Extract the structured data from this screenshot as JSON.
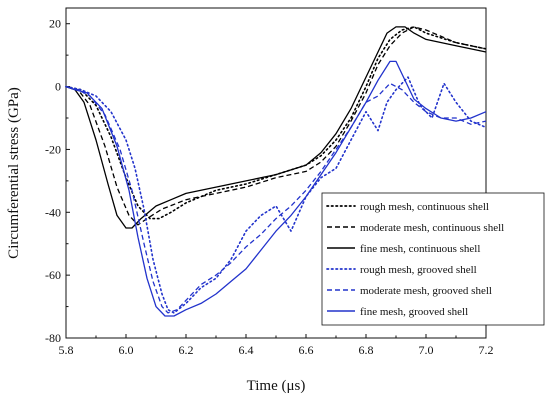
{
  "chart_data": {
    "type": "line",
    "xlabel": "Time (μs)",
    "ylabel": "Circumferential stress (GPa)",
    "xlim": [
      5.8,
      7.2
    ],
    "ylim": [
      -80,
      25
    ],
    "x_ticks": [
      "5.8",
      "6.0",
      "6.2",
      "6.4",
      "6.6",
      "6.8",
      "7.0",
      "7.2"
    ],
    "y_ticks": [
      "20",
      "0",
      "-20",
      "-40",
      "-60",
      "-80"
    ],
    "grid": false,
    "legend_position": "bottom-right",
    "series": [
      {
        "name": "rough mesh, continuous shell",
        "color": "#000000",
        "dash": "dotted",
        "points": [
          [
            5.8,
            0
          ],
          [
            5.85,
            -1
          ],
          [
            5.9,
            -6
          ],
          [
            5.95,
            -16
          ],
          [
            6.0,
            -29
          ],
          [
            6.04,
            -38
          ],
          [
            6.08,
            -42
          ],
          [
            6.11,
            -42
          ],
          [
            6.15,
            -40
          ],
          [
            6.2,
            -37
          ],
          [
            6.3,
            -33
          ],
          [
            6.4,
            -31
          ],
          [
            6.5,
            -28
          ],
          [
            6.6,
            -25
          ],
          [
            6.65,
            -22
          ],
          [
            6.7,
            -17
          ],
          [
            6.75,
            -10
          ],
          [
            6.8,
            0
          ],
          [
            6.84,
            9
          ],
          [
            6.88,
            15
          ],
          [
            6.92,
            18
          ],
          [
            6.96,
            19
          ],
          [
            7.0,
            17
          ],
          [
            7.1,
            14
          ],
          [
            7.2,
            12
          ]
        ]
      },
      {
        "name": "moderate mesh, continuous shell",
        "color": "#000000",
        "dash": "dashed",
        "points": [
          [
            5.8,
            0
          ],
          [
            5.84,
            -1
          ],
          [
            5.88,
            -6
          ],
          [
            5.93,
            -19
          ],
          [
            5.97,
            -32
          ],
          [
            6.01,
            -41
          ],
          [
            6.04,
            -44
          ],
          [
            6.07,
            -42
          ],
          [
            6.12,
            -39
          ],
          [
            6.2,
            -36
          ],
          [
            6.3,
            -34
          ],
          [
            6.4,
            -32
          ],
          [
            6.5,
            -29
          ],
          [
            6.6,
            -27
          ],
          [
            6.65,
            -24
          ],
          [
            6.7,
            -19
          ],
          [
            6.75,
            -11
          ],
          [
            6.8,
            -2
          ],
          [
            6.84,
            7
          ],
          [
            6.88,
            13
          ],
          [
            6.92,
            17
          ],
          [
            6.96,
            19
          ],
          [
            7.0,
            18
          ],
          [
            7.1,
            14
          ],
          [
            7.2,
            12
          ]
        ]
      },
      {
        "name": "fine mesh, continuous shell",
        "color": "#000000",
        "dash": "solid",
        "points": [
          [
            5.8,
            0
          ],
          [
            5.83,
            -1
          ],
          [
            5.86,
            -5
          ],
          [
            5.9,
            -17
          ],
          [
            5.94,
            -31
          ],
          [
            5.97,
            -41
          ],
          [
            6.0,
            -45
          ],
          [
            6.02,
            -45
          ],
          [
            6.05,
            -42
          ],
          [
            6.1,
            -38
          ],
          [
            6.15,
            -36
          ],
          [
            6.2,
            -34
          ],
          [
            6.3,
            -32
          ],
          [
            6.4,
            -30
          ],
          [
            6.5,
            -28
          ],
          [
            6.6,
            -25
          ],
          [
            6.65,
            -21
          ],
          [
            6.7,
            -15
          ],
          [
            6.75,
            -7
          ],
          [
            6.8,
            3
          ],
          [
            6.84,
            11
          ],
          [
            6.87,
            17
          ],
          [
            6.9,
            19
          ],
          [
            6.93,
            19
          ],
          [
            6.96,
            17
          ],
          [
            7.0,
            15
          ],
          [
            7.1,
            13
          ],
          [
            7.2,
            11
          ]
        ]
      },
      {
        "name": "rough mesh, grooved shell",
        "color": "#2233cc",
        "dash": "dotted",
        "points": [
          [
            5.8,
            0
          ],
          [
            5.85,
            -1
          ],
          [
            5.9,
            -3
          ],
          [
            5.95,
            -8
          ],
          [
            6.0,
            -17
          ],
          [
            6.03,
            -26
          ],
          [
            6.06,
            -39
          ],
          [
            6.09,
            -55
          ],
          [
            6.12,
            -66
          ],
          [
            6.14,
            -71
          ],
          [
            6.16,
            -72
          ],
          [
            6.2,
            -69
          ],
          [
            6.25,
            -64
          ],
          [
            6.3,
            -61
          ],
          [
            6.35,
            -55
          ],
          [
            6.4,
            -46
          ],
          [
            6.45,
            -41
          ],
          [
            6.5,
            -38
          ],
          [
            6.55,
            -46
          ],
          [
            6.6,
            -35
          ],
          [
            6.65,
            -29
          ],
          [
            6.7,
            -26
          ],
          [
            6.75,
            -17
          ],
          [
            6.8,
            -8
          ],
          [
            6.84,
            -14
          ],
          [
            6.87,
            -5
          ],
          [
            6.9,
            -1
          ],
          [
            6.94,
            3
          ],
          [
            6.98,
            -6
          ],
          [
            7.02,
            -10
          ],
          [
            7.06,
            1
          ],
          [
            7.1,
            -5
          ],
          [
            7.15,
            -11
          ],
          [
            7.2,
            -13
          ]
        ]
      },
      {
        "name": "moderate mesh, grooved shell",
        "color": "#2233cc",
        "dash": "dashed",
        "points": [
          [
            5.8,
            0
          ],
          [
            5.84,
            -1
          ],
          [
            5.88,
            -3
          ],
          [
            5.93,
            -9
          ],
          [
            5.98,
            -20
          ],
          [
            6.02,
            -33
          ],
          [
            6.06,
            -50
          ],
          [
            6.09,
            -62
          ],
          [
            6.12,
            -70
          ],
          [
            6.14,
            -72
          ],
          [
            6.17,
            -71
          ],
          [
            6.2,
            -68
          ],
          [
            6.25,
            -63
          ],
          [
            6.3,
            -60
          ],
          [
            6.35,
            -56
          ],
          [
            6.4,
            -51
          ],
          [
            6.45,
            -47
          ],
          [
            6.5,
            -42
          ],
          [
            6.55,
            -38
          ],
          [
            6.6,
            -33
          ],
          [
            6.65,
            -27
          ],
          [
            6.7,
            -20
          ],
          [
            6.75,
            -13
          ],
          [
            6.8,
            -5
          ],
          [
            6.84,
            -3
          ],
          [
            6.88,
            1
          ],
          [
            6.92,
            -1
          ],
          [
            6.96,
            -5
          ],
          [
            7.0,
            -8
          ],
          [
            7.05,
            -10
          ],
          [
            7.1,
            -10
          ],
          [
            7.15,
            -12
          ],
          [
            7.2,
            -11
          ]
        ]
      },
      {
        "name": "fine mesh, grooved shell",
        "color": "#2233cc",
        "dash": "solid",
        "points": [
          [
            5.8,
            0
          ],
          [
            5.83,
            -1
          ],
          [
            5.87,
            -2
          ],
          [
            5.92,
            -7
          ],
          [
            5.97,
            -19
          ],
          [
            6.01,
            -33
          ],
          [
            6.04,
            -48
          ],
          [
            6.07,
            -61
          ],
          [
            6.1,
            -70
          ],
          [
            6.13,
            -73
          ],
          [
            6.16,
            -73
          ],
          [
            6.2,
            -71
          ],
          [
            6.25,
            -69
          ],
          [
            6.3,
            -66
          ],
          [
            6.35,
            -62
          ],
          [
            6.4,
            -58
          ],
          [
            6.45,
            -52
          ],
          [
            6.5,
            -46
          ],
          [
            6.55,
            -41
          ],
          [
            6.6,
            -35
          ],
          [
            6.65,
            -28
          ],
          [
            6.7,
            -21
          ],
          [
            6.75,
            -13
          ],
          [
            6.8,
            -5
          ],
          [
            6.84,
            2
          ],
          [
            6.88,
            8
          ],
          [
            6.9,
            8
          ],
          [
            6.92,
            4
          ],
          [
            6.96,
            -4
          ],
          [
            7.0,
            -7
          ],
          [
            7.05,
            -10
          ],
          [
            7.1,
            -11
          ],
          [
            7.15,
            -10
          ],
          [
            7.2,
            -8
          ]
        ]
      }
    ]
  }
}
